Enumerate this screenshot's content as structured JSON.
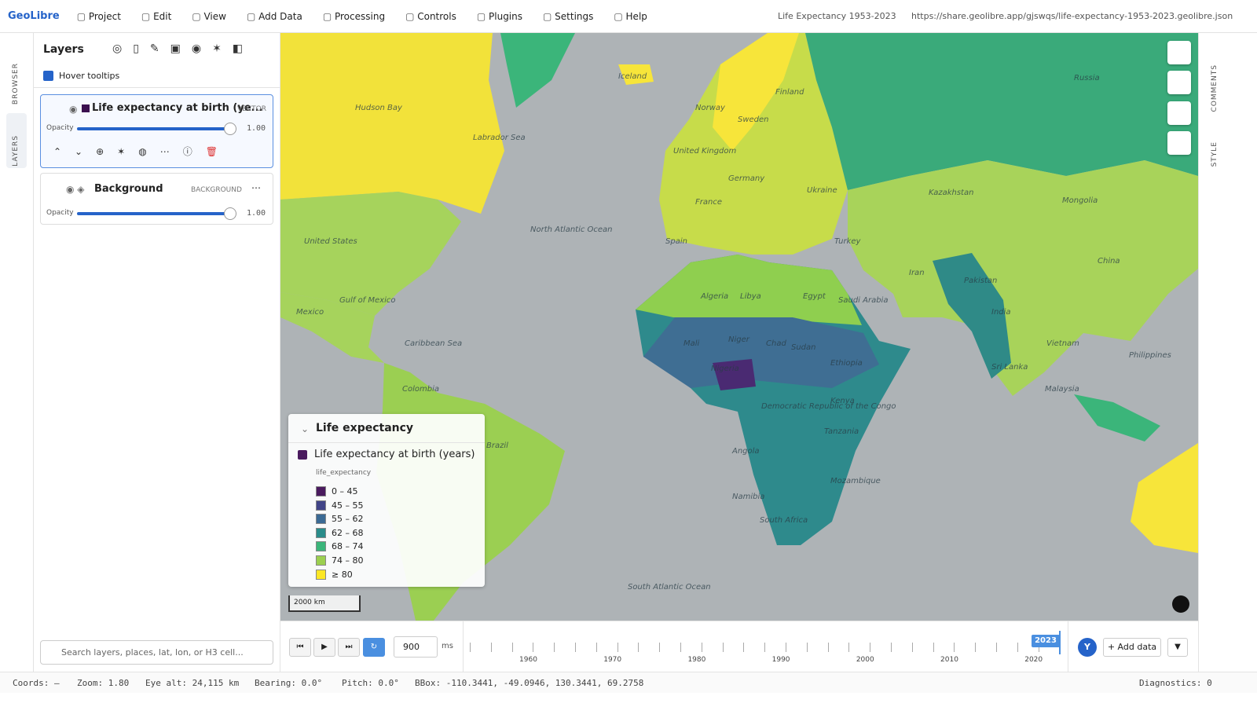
{
  "menu": {
    "brand": "GeoLibre",
    "items": [
      "Project",
      "Edit",
      "View",
      "Add Data",
      "Processing",
      "Controls",
      "Plugins",
      "Settings",
      "Help"
    ],
    "project_title": "Life Expectancy 1953-2023",
    "url": "https://share.geolibre.app/gjswqs/life-expectancy-1953-2023.geolibre.json"
  },
  "left_tabs": [
    "BROWSER",
    "LAYERS"
  ],
  "right_tabs": [
    "COMMENTS",
    "STYLE"
  ],
  "layers_panel": {
    "title": "Layers",
    "hover_tooltips": "Hover tooltips",
    "layers": [
      {
        "name": "Life expectancy at birth (ye...",
        "kind": "VECTOR",
        "opacity_label": "Opacity",
        "opacity": "1.00"
      },
      {
        "name": "Background",
        "kind": "BACKGROUND",
        "opacity_label": "Opacity",
        "opacity": "1.00"
      }
    ],
    "search_placeholder": "Search layers, places, lat, lon, or H3 cell..."
  },
  "legend": {
    "title": "Life expectancy",
    "layer": "Life expectancy at birth (years)",
    "field": "life_expectancy",
    "classes": [
      {
        "label": "0 – 45",
        "color": "#4a1a5e"
      },
      {
        "label": "45 – 55",
        "color": "#414487"
      },
      {
        "label": "55 – 62",
        "color": "#3b6a94"
      },
      {
        "label": "62 – 68",
        "color": "#2a8c8a"
      },
      {
        "label": "68 – 74",
        "color": "#3bb57a"
      },
      {
        "label": "74 – 80",
        "color": "#9ccf4f"
      },
      {
        "label": "≥ 80",
        "color": "#fde725"
      }
    ]
  },
  "map": {
    "scale": "2000 km",
    "labels": [
      "Hudson Bay",
      "Labrador Sea",
      "North Atlantic Ocean",
      "Gulf of Mexico",
      "Caribbean Sea",
      "South Atlantic Ocean",
      "United States",
      "Mexico",
      "Colombia",
      "Brazil",
      "Iceland",
      "Norway",
      "Sweden",
      "Finland",
      "United Kingdom",
      "France",
      "Spain",
      "Germany",
      "Ukraine",
      "Turkey",
      "Algeria",
      "Libya",
      "Egypt",
      "Saudi Arabia",
      "Iran",
      "Mali",
      "Niger",
      "Chad",
      "Sudan",
      "Nigeria",
      "Ethiopia",
      "Kenya",
      "Democratic Republic of the Congo",
      "Tanzania",
      "Angola",
      "Namibia",
      "South Africa",
      "Mozambique",
      "Kazakhstan",
      "Mongolia",
      "Russia",
      "China",
      "Pakistan",
      "India",
      "Sri Lanka",
      "Vietnam",
      "Philippines",
      "Malaysia"
    ]
  },
  "timeline": {
    "speed": "900",
    "unit": "ms",
    "years": [
      "1960",
      "1970",
      "1980",
      "1990",
      "2000",
      "2010",
      "2020"
    ],
    "current": "2023",
    "avatar": "Y",
    "add_data": "+ Add data"
  },
  "status": {
    "coords": "Coords: —",
    "zoom": "Zoom: 1.80",
    "eye_alt": "Eye alt: 24,115 km",
    "bearing": "Bearing: 0.0°",
    "pitch": "Pitch: 0.0°",
    "bbox": "BBox: -110.3441, -49.0946, 130.3441, 69.2758",
    "diagnostics": "Diagnostics: 0"
  }
}
